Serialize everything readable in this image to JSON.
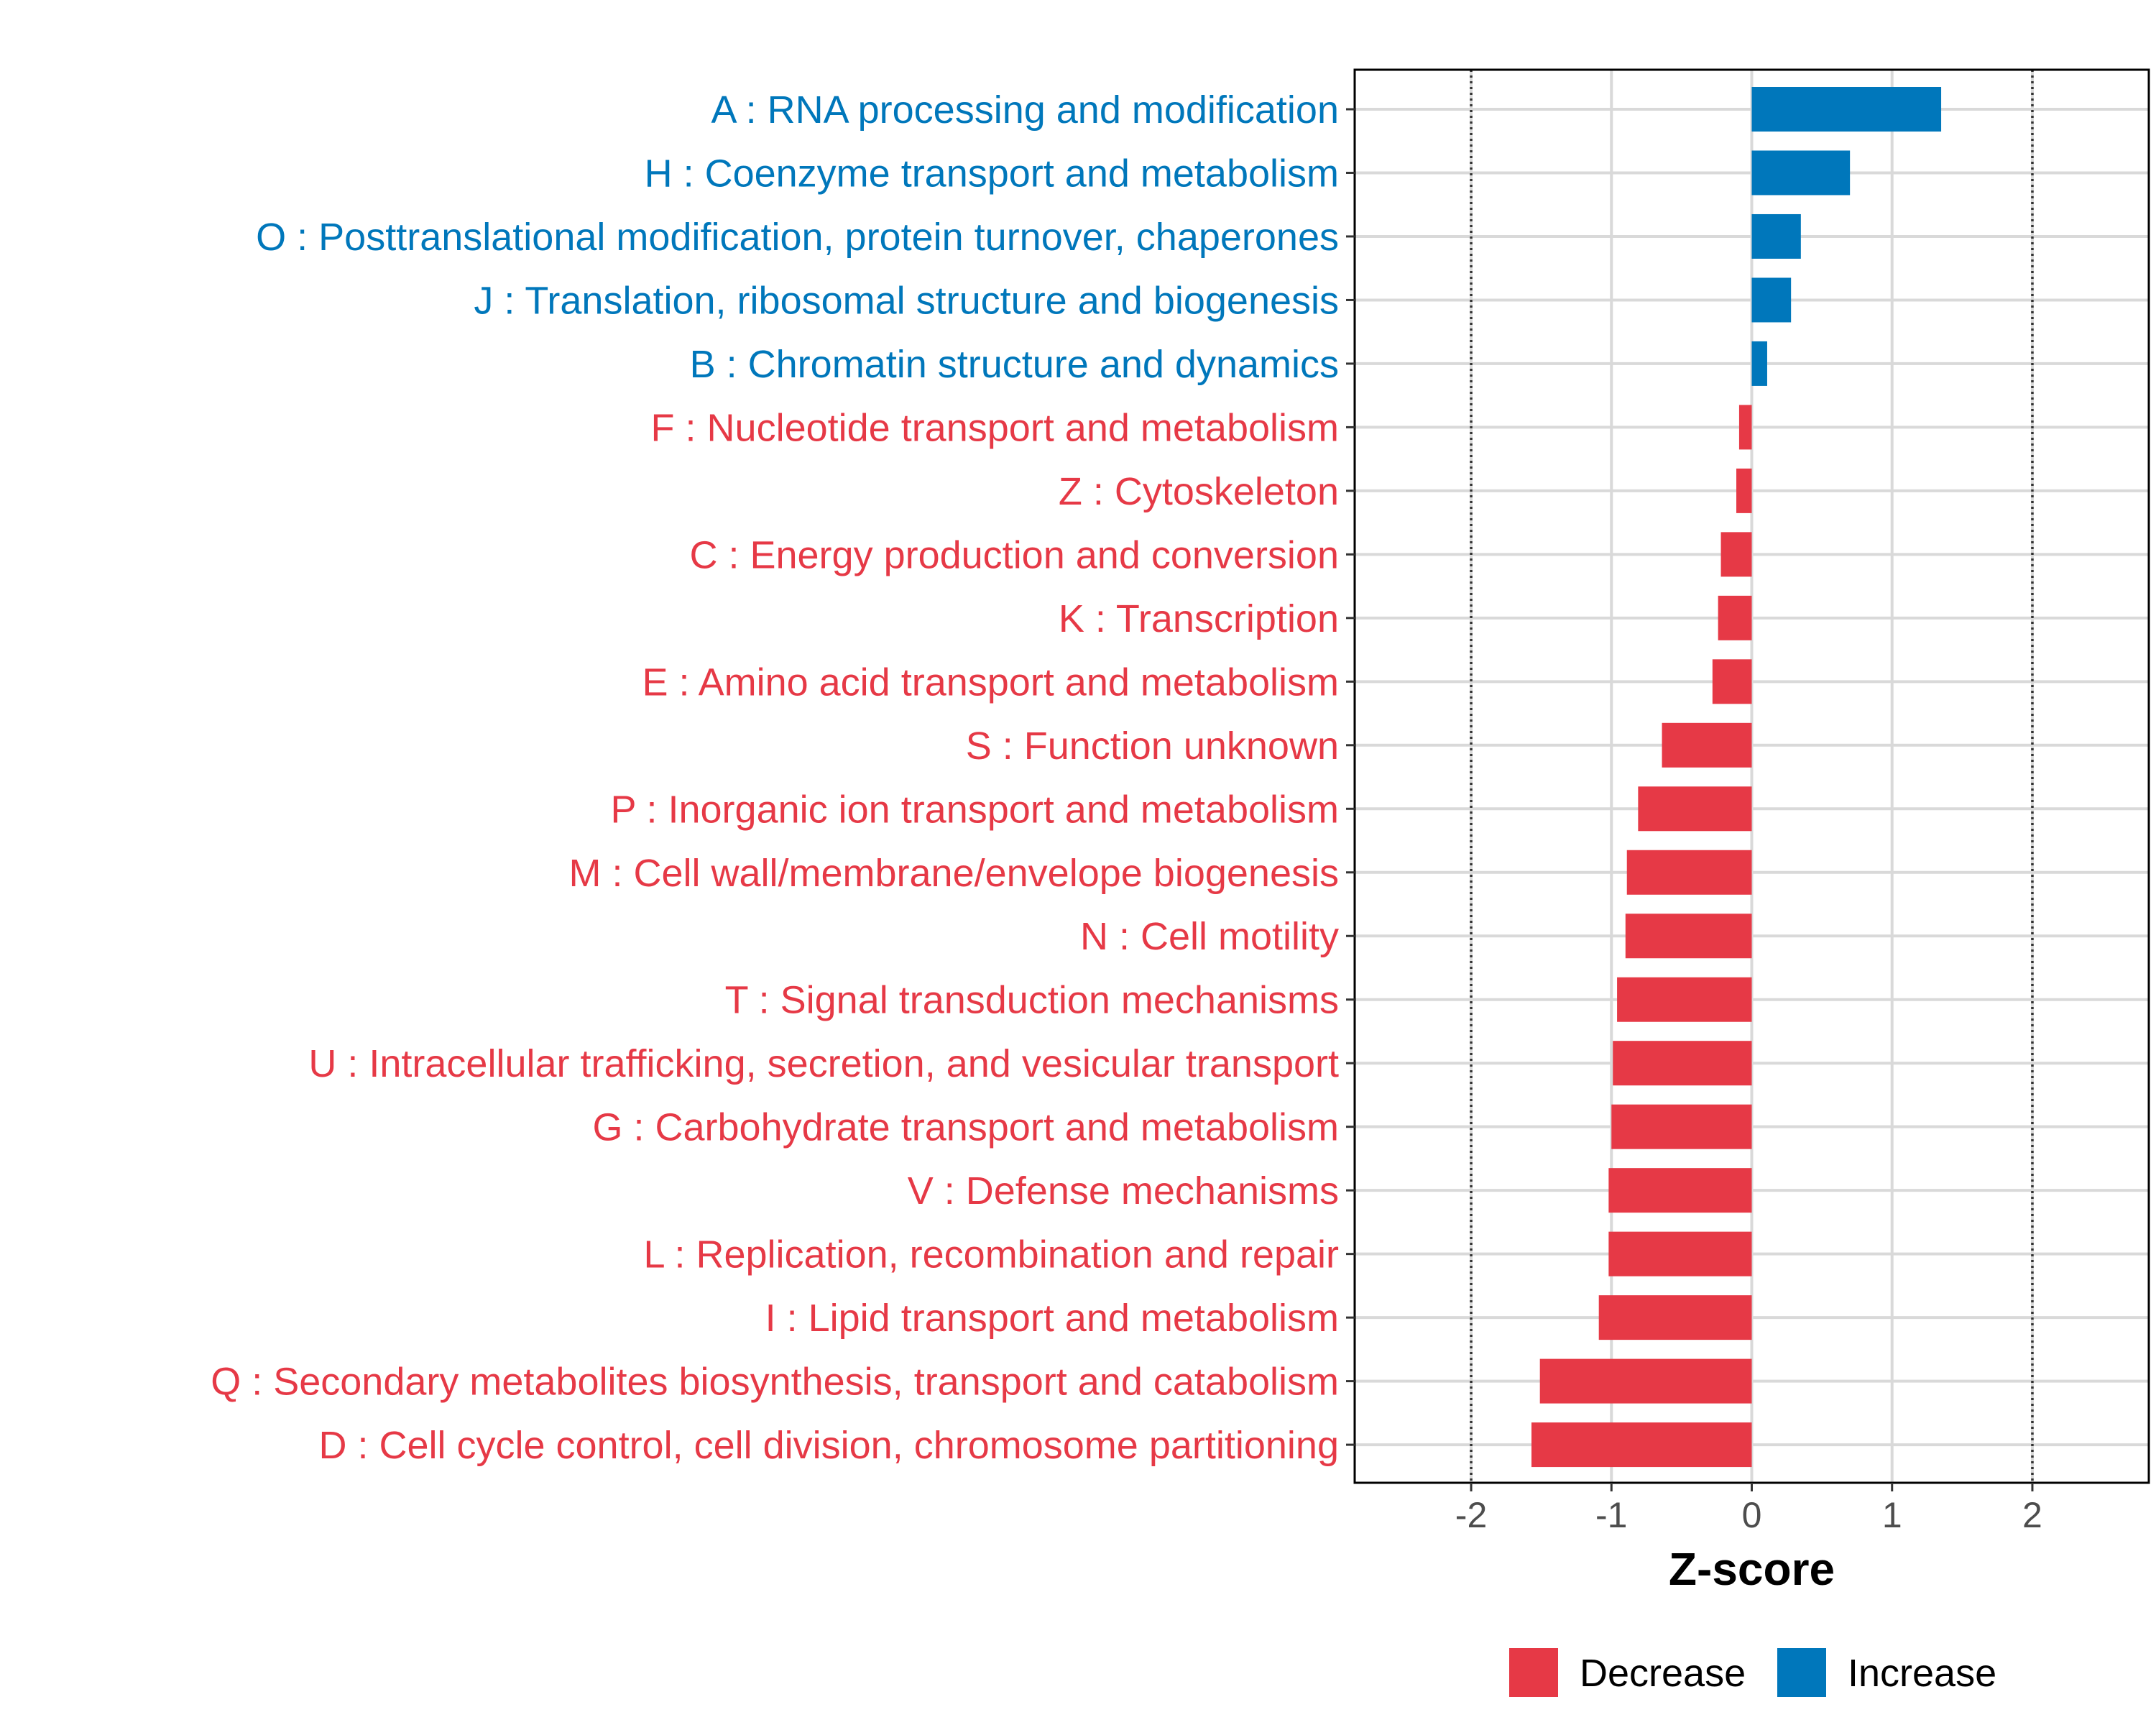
{
  "chart_data": {
    "type": "bar",
    "orientation": "horizontal",
    "xlabel": "Z-score",
    "ylabel": "",
    "xlim": [
      -2.83,
      2.83
    ],
    "xticks": [
      -2,
      -1,
      0,
      1,
      2
    ],
    "xtick_labels": [
      "-2",
      "-1",
      "0",
      "1",
      "2"
    ],
    "reference_lines": [
      -2,
      2
    ],
    "grid": true,
    "categories": [
      "A : RNA processing and modification",
      "H : Coenzyme transport and metabolism",
      "O : Posttranslational modification, protein turnover, chaperones",
      "J : Translation, ribosomal structure and biogenesis",
      "B : Chromatin structure and dynamics",
      "F : Nucleotide transport and metabolism",
      "Z : Cytoskeleton",
      "C : Energy production and conversion",
      "K : Transcription",
      "E : Amino acid transport and metabolism",
      "S : Function unknown",
      "P : Inorganic ion transport and metabolism",
      "M : Cell wall/membrane/envelope biogenesis",
      "N : Cell motility",
      "T : Signal transduction mechanisms",
      "U : Intracellular trafficking, secretion, and vesicular transport",
      "G : Carbohydrate transport and metabolism",
      "V : Defense mechanisms",
      "L : Replication, recombination and repair",
      "I : Lipid transport and metabolism",
      "Q : Secondary metabolites biosynthesis, transport and catabolism",
      "D : Cell cycle control, cell division, chromosome partitioning"
    ],
    "values": [
      1.35,
      0.7,
      0.35,
      0.28,
      0.11,
      -0.09,
      -0.11,
      -0.22,
      -0.24,
      -0.28,
      -0.64,
      -0.81,
      -0.89,
      -0.9,
      -0.96,
      -0.99,
      -1.0,
      -1.02,
      -1.02,
      -1.09,
      -1.51,
      -1.57
    ],
    "groups": [
      "Increase",
      "Increase",
      "Increase",
      "Increase",
      "Increase",
      "Decrease",
      "Decrease",
      "Decrease",
      "Decrease",
      "Decrease",
      "Decrease",
      "Decrease",
      "Decrease",
      "Decrease",
      "Decrease",
      "Decrease",
      "Decrease",
      "Decrease",
      "Decrease",
      "Decrease",
      "Decrease",
      "Decrease"
    ],
    "legend": [
      {
        "name": "Decrease",
        "color": "#e63946"
      },
      {
        "name": "Increase",
        "color": "#0077bb"
      }
    ],
    "legend_position": "bottom"
  },
  "colors": {
    "increase": "#0077bb",
    "decrease": "#e63946",
    "grid": "#d9d9d9",
    "axis": "#000000"
  }
}
